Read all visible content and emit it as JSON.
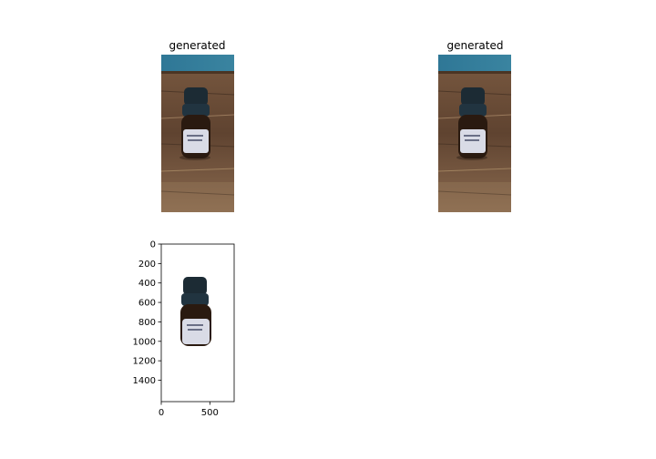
{
  "figure": {
    "panels": [
      {
        "title": "generated",
        "content": "amber dropper bottle with black cap on wooden table, blue background"
      },
      {
        "title": "generated",
        "content": "amber dropper bottle with black cap on wooden table, blue background"
      }
    ]
  },
  "chart_data": {
    "type": "image",
    "title": "",
    "subject": "segmented bottle on white background",
    "xlabel": "",
    "ylabel": "",
    "xlim": [
      0,
      750
    ],
    "ylim": [
      1620,
      0
    ],
    "xticks": [
      0,
      500
    ],
    "yticks": [
      0,
      200,
      400,
      600,
      800,
      1000,
      1200,
      1400
    ],
    "xtick_labels": [
      "0",
      "500"
    ],
    "ytick_labels": [
      "0",
      "200",
      "400",
      "600",
      "800",
      "1000",
      "1200",
      "1400"
    ]
  },
  "colors": {
    "wall": "#2f6f8f",
    "table": "#6b4a33",
    "cap": "#1b2a33",
    "bottle": "#2a1a10",
    "label": "#d9dbe6"
  }
}
